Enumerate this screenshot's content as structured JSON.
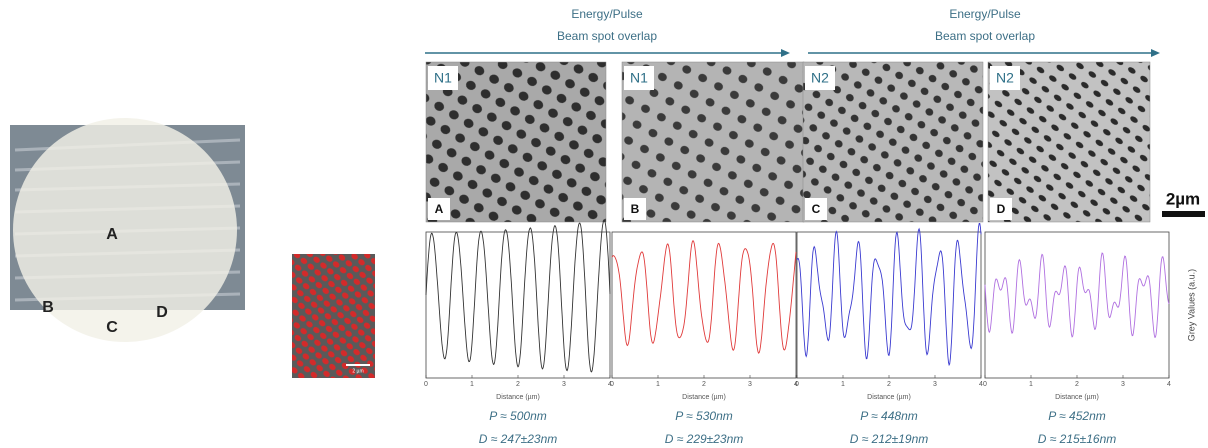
{
  "photo": {
    "labels": [
      "A",
      "B",
      "C",
      "D"
    ]
  },
  "arrows": [
    {
      "line1": "Energy/Pulse",
      "line2": "Beam spot overlap"
    },
    {
      "line1": "Energy/Pulse",
      "line2": "Beam spot overlap"
    }
  ],
  "panels": [
    {
      "sample": "N1",
      "letter": "A"
    },
    {
      "sample": "N1",
      "letter": "B"
    },
    {
      "sample": "N2",
      "letter": "C"
    },
    {
      "sample": "N2",
      "letter": "D"
    }
  ],
  "scale_bar": "2µm",
  "inset_scale_bar": "2 µm",
  "profiles": {
    "y_label": "Grey Values (a.u.)",
    "x_label": "Distance (µm)",
    "xlim": [
      0,
      4
    ],
    "xticks": [
      0,
      1,
      2,
      3,
      4
    ],
    "plots": [
      {
        "color": "#333333",
        "period": "P ≈ 500nm",
        "diameter": "D ≈ 247±23nm"
      },
      {
        "color": "#e03a3a",
        "period": "P ≈ 530nm",
        "diameter": "D ≈ 229±23nm"
      },
      {
        "color": "#3a3ad0",
        "period": "P ≈ 448nm",
        "diameter": "D ≈ 212±19nm"
      },
      {
        "color": "#b070e0",
        "period": "P ≈ 452nm",
        "diameter": "D ≈ 215±16nm"
      }
    ]
  }
}
